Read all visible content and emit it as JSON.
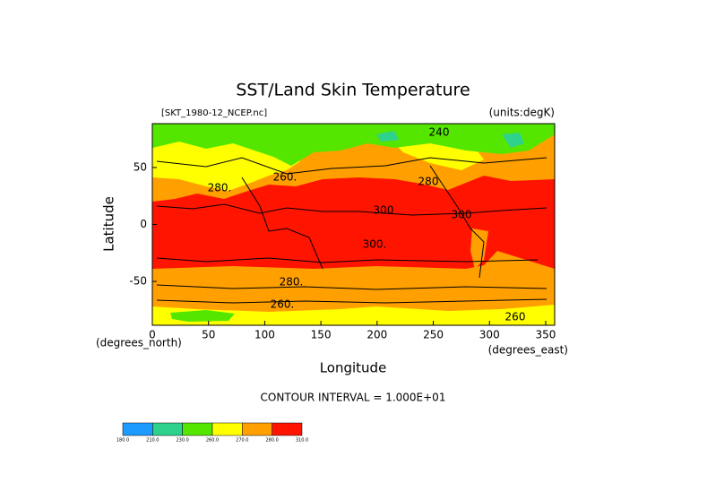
{
  "chart_data": {
    "type": "contour",
    "title": "SST/Land Skin Temperature",
    "file_label": "[SKT_1980-12_NCEP.nc]",
    "units_label": "(units:degK)",
    "x_label": "Longitude",
    "y_label": "Latitude",
    "x_unit_label": "(degrees_east)",
    "y_unit_label": "(degrees_north)",
    "xlim": [
      0,
      358
    ],
    "ylim": [
      -88.5,
      88.5
    ],
    "xticks": [
      0,
      50,
      100,
      150,
      200,
      250,
      300,
      350
    ],
    "yticks": [
      -50,
      0,
      50
    ],
    "contour_interval_note": "CONTOUR INTERVAL = 1.000E+01",
    "contour_labels": [
      "240",
      "280.",
      "260.",
      "280",
      "300",
      "300",
      "300.",
      "280.",
      "260.",
      "260"
    ],
    "levels": [
      {
        "value": 180,
        "label": "180.0"
      },
      {
        "value": 210,
        "label": "210.0"
      },
      {
        "value": 230,
        "label": "230.0"
      },
      {
        "value": 260,
        "label": "260.0"
      },
      {
        "value": 270,
        "label": "270.0"
      },
      {
        "value": 280,
        "label": "280.0"
      },
      {
        "value": 310,
        "label": "310.0"
      }
    ],
    "colors": [
      "#1e9bff",
      "#00e6a0",
      "#2ed28c",
      "#55e600",
      "#ffff00",
      "#ffa000",
      "#ff1400"
    ]
  }
}
